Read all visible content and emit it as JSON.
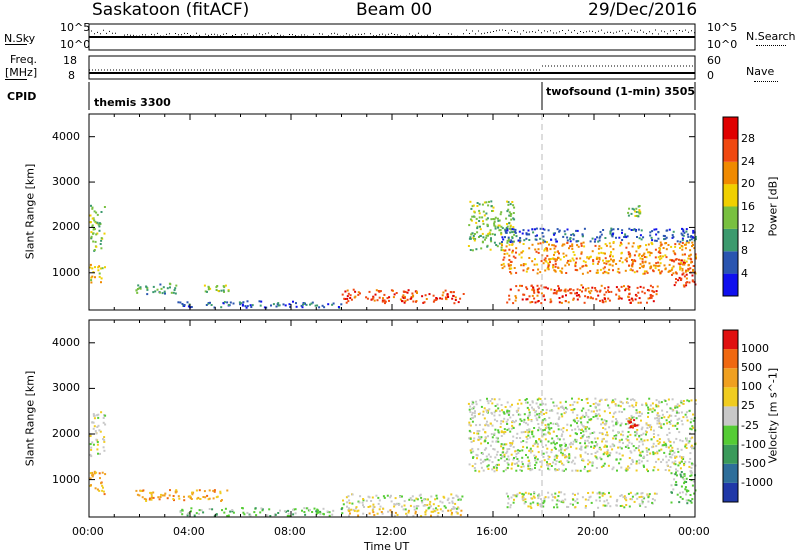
{
  "header": {
    "station": "Saskatoon (fitACF)",
    "beam": "Beam 00",
    "date": "29/Dec/2016"
  },
  "top_panels": {
    "nsky_label": "N.Sky",
    "nsky_ticks": [
      "10^5",
      "10^0"
    ],
    "nsearch_label": "N.Search",
    "nsearch_ticks": [
      "10^5",
      "10^0"
    ],
    "freq_label": "Freq.",
    "freq_unit": "[MHz]",
    "freq_ticks": [
      "18",
      "8"
    ],
    "nave_label": "Nave",
    "nave_ticks": [
      "60",
      "0"
    ],
    "cpid_label": "CPID",
    "cpid_segments": [
      {
        "start_hour": 0,
        "label": "themis 3300"
      },
      {
        "start_hour": 18,
        "label": "twofsound (1-min) 3505"
      }
    ]
  },
  "chart_data": [
    {
      "type": "heatmap",
      "title": "Power",
      "ylabel": "Slant Range [km]",
      "xlabel": "",
      "xlim": [
        0,
        24
      ],
      "ylim": [
        180,
        4500
      ],
      "y_ticks": [
        1000,
        2000,
        3000,
        4000
      ],
      "colorbar": {
        "label": "Power [dB]",
        "ticks": [
          "4",
          "8",
          "12",
          "16",
          "20",
          "24",
          "28"
        ],
        "colors": [
          "#1010ee",
          "#2a55b0",
          "#3c9a6e",
          "#78c040",
          "#f0d000",
          "#f08a00",
          "#f04810",
          "#e00000"
        ]
      },
      "echo_regions": [
        {
          "t0": 0.0,
          "t1": 0.6,
          "r0": 1500,
          "r1": 2500,
          "level": 3
        },
        {
          "t0": 0.0,
          "t1": 0.6,
          "r0": 800,
          "r1": 1200,
          "level": 4
        },
        {
          "t0": 1.8,
          "t1": 3.5,
          "r0": 550,
          "r1": 800,
          "level": 2
        },
        {
          "t0": 3.5,
          "t1": 10.0,
          "r0": 250,
          "r1": 400,
          "level": 1
        },
        {
          "t0": 4.5,
          "t1": 5.5,
          "r0": 600,
          "r1": 800,
          "level": 3
        },
        {
          "t0": 10.0,
          "t1": 14.8,
          "r0": 350,
          "r1": 650,
          "level": 6
        },
        {
          "t0": 15.0,
          "t1": 16.8,
          "r0": 1500,
          "r1": 2600,
          "level": 3
        },
        {
          "t0": 16.3,
          "t1": 24.0,
          "r0": 1000,
          "r1": 1700,
          "level": 5
        },
        {
          "t0": 16.3,
          "t1": 24.0,
          "r0": 1700,
          "r1": 2000,
          "level": 1
        },
        {
          "t0": 16.5,
          "t1": 22.5,
          "r0": 350,
          "r1": 750,
          "level": 6
        },
        {
          "t0": 21.3,
          "t1": 21.8,
          "r0": 2200,
          "r1": 2500,
          "level": 3
        },
        {
          "t0": 23.0,
          "t1": 24.0,
          "r0": 700,
          "r1": 1300,
          "level": 6
        }
      ]
    },
    {
      "type": "heatmap",
      "title": "Velocity",
      "ylabel": "Slant Range [km]",
      "xlabel": "Time UT",
      "xlim": [
        0,
        24
      ],
      "ylim": [
        180,
        4500
      ],
      "y_ticks": [
        1000,
        2000,
        3000,
        4000
      ],
      "x_ticks": [
        "00:00",
        "04:00",
        "08:00",
        "12:00",
        "16:00",
        "20:00",
        "00:00"
      ],
      "colorbar": {
        "label": "Velocity [m s^-1]",
        "ticks": [
          "1000",
          "500",
          "100",
          "25",
          "-25",
          "-100",
          "-500",
          "-1000"
        ],
        "colors": [
          "#2038a8",
          "#2e6e9a",
          "#3a9a5a",
          "#55cc35",
          "#c8c8c8",
          "#f0cc20",
          "#f0a020",
          "#f06810",
          "#e01010"
        ]
      },
      "echo_regions": [
        {
          "t0": 0.0,
          "t1": 0.6,
          "r0": 1500,
          "r1": 2500,
          "level": 4
        },
        {
          "t0": 0.0,
          "t1": 0.6,
          "r0": 700,
          "r1": 1200,
          "level": 6
        },
        {
          "t0": 1.8,
          "t1": 5.5,
          "r0": 550,
          "r1": 800,
          "level": 6
        },
        {
          "t0": 3.5,
          "t1": 10.0,
          "r0": 220,
          "r1": 400,
          "level": 3
        },
        {
          "t0": 10.0,
          "t1": 14.8,
          "r0": 350,
          "r1": 700,
          "level": 4
        },
        {
          "t0": 10.0,
          "t1": 14.8,
          "r0": 220,
          "r1": 350,
          "level": 5
        },
        {
          "t0": 15.0,
          "t1": 24.0,
          "r0": 1200,
          "r1": 2800,
          "level": 4
        },
        {
          "t0": 16.5,
          "t1": 22.5,
          "r0": 400,
          "r1": 750,
          "level": 4
        },
        {
          "t0": 21.3,
          "t1": 21.7,
          "r0": 2150,
          "r1": 2350,
          "level": 8
        },
        {
          "t0": 23.0,
          "t1": 24.0,
          "r0": 500,
          "r1": 1200,
          "level": 3
        }
      ]
    }
  ]
}
